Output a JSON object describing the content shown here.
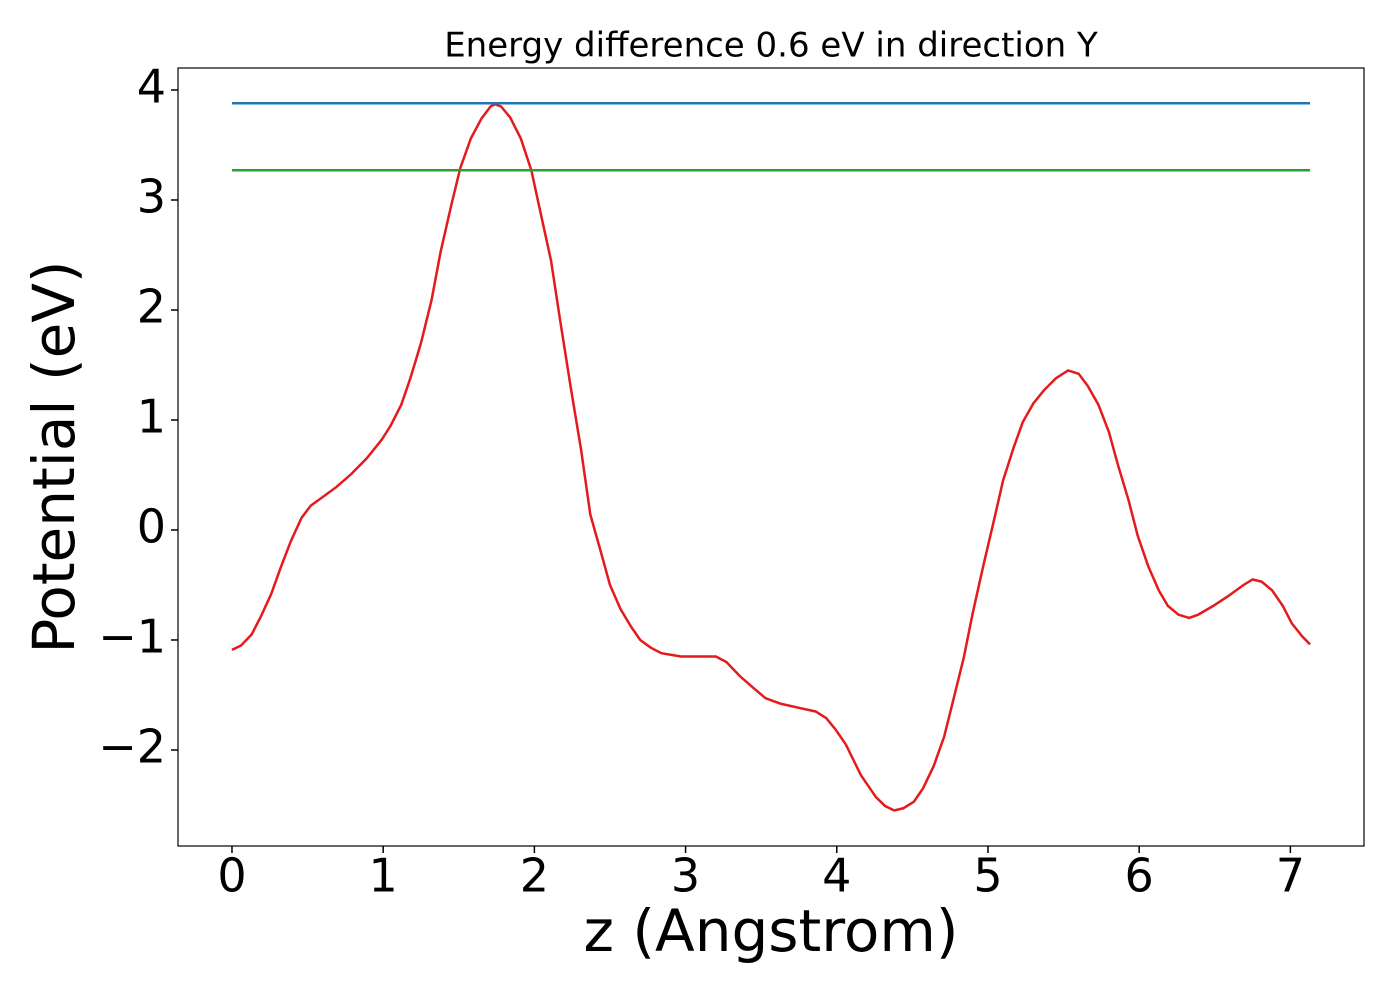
{
  "chart_data": {
    "type": "line",
    "title": "Energy difference 0.6 eV in direction Y",
    "xlabel": "z (Angstrom)",
    "ylabel": "Potential (eV)",
    "xlim": [
      -0.357,
      7.487
    ],
    "ylim": [
      -2.873,
      4.2
    ],
    "xticks": [
      0,
      1,
      2,
      3,
      4,
      5,
      6,
      7
    ],
    "yticks": [
      {
        "value": -2,
        "label": "−2"
      },
      {
        "value": -1,
        "label": "−1"
      },
      0,
      1,
      2,
      3,
      4
    ],
    "grid": false,
    "series": [
      {
        "color": "#e41a1c",
        "x": [
          0,
          0.06,
          0.13,
          0.19,
          0.26,
          0.32,
          0.39,
          0.46,
          0.52,
          0.59,
          0.69,
          0.79,
          0.89,
          0.99,
          1.05,
          1.12,
          1.18,
          1.25,
          1.32,
          1.38,
          1.45,
          1.51,
          1.58,
          1.65,
          1.71,
          1.74,
          1.78,
          1.84,
          1.91,
          1.98,
          2.04,
          2.11,
          2.17,
          2.24,
          2.31,
          2.37,
          2.44,
          2.5,
          2.57,
          2.64,
          2.7,
          2.77,
          2.84,
          2.97,
          3.1,
          3.2,
          3.27,
          3.36,
          3.46,
          3.53,
          3.63,
          3.76,
          3.86,
          3.93,
          3.99,
          4.06,
          4.16,
          4.26,
          4.32,
          4.38,
          4.44,
          4.51,
          4.57,
          4.64,
          4.71,
          4.77,
          4.84,
          4.9,
          4.97,
          5.04,
          5.1,
          5.17,
          5.23,
          5.3,
          5.37,
          5.45,
          5.53,
          5.6,
          5.66,
          5.73,
          5.8,
          5.86,
          5.93,
          5.99,
          6.06,
          6.13,
          6.19,
          6.26,
          6.33,
          6.39,
          6.49,
          6.59,
          6.69,
          6.75,
          6.81,
          6.88,
          6.95,
          7.01,
          7.08,
          7.13
        ],
        "values": [
          -1.09,
          -1.05,
          -0.95,
          -0.79,
          -0.58,
          -0.35,
          -0.1,
          0.11,
          0.22,
          0.29,
          0.39,
          0.51,
          0.65,
          0.82,
          0.95,
          1.14,
          1.38,
          1.7,
          2.09,
          2.53,
          2.95,
          3.29,
          3.56,
          3.74,
          3.85,
          3.87,
          3.85,
          3.75,
          3.56,
          3.27,
          2.89,
          2.45,
          1.91,
          1.3,
          0.72,
          0.14,
          -0.2,
          -0.5,
          -0.72,
          -0.88,
          -1.0,
          -1.07,
          -1.12,
          -1.15,
          -1.15,
          -1.15,
          -1.2,
          -1.33,
          -1.45,
          -1.53,
          -1.58,
          -1.62,
          -1.65,
          -1.71,
          -1.81,
          -1.95,
          -2.23,
          -2.43,
          -2.51,
          -2.55,
          -2.53,
          -2.47,
          -2.35,
          -2.15,
          -1.88,
          -1.55,
          -1.16,
          -0.75,
          -0.32,
          0.09,
          0.45,
          0.75,
          0.98,
          1.15,
          1.27,
          1.38,
          1.45,
          1.42,
          1.31,
          1.14,
          0.89,
          0.59,
          0.27,
          -0.05,
          -0.33,
          -0.55,
          -0.69,
          -0.77,
          -0.8,
          -0.77,
          -0.69,
          -0.6,
          -0.5,
          -0.45,
          -0.47,
          -0.55,
          -0.69,
          -0.85,
          -0.97,
          -1.04
        ]
      },
      {
        "color": "#1f77b4",
        "x": [
          0,
          7.13
        ],
        "values": [
          3.88,
          3.88
        ]
      },
      {
        "color": "#2ca02c",
        "x": [
          0,
          7.13
        ],
        "values": [
          3.27,
          3.27
        ]
      }
    ]
  }
}
